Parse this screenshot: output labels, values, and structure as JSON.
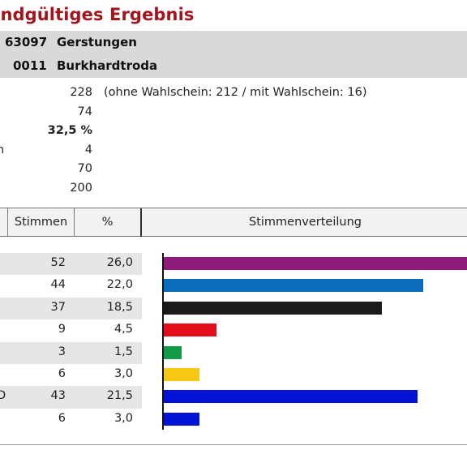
{
  "header": {
    "title": "Endgültiges Ergebnis",
    "municipality_code": "63097",
    "municipality_name": "Gerstungen",
    "district_code": "0011",
    "district_name": "Burkhardtroda"
  },
  "stats": [
    {
      "label_fragment": "",
      "value": "228",
      "note": "(ohne Wahlschein: 212 / mit Wahlschein: 16)",
      "bold": false
    },
    {
      "label_fragment": "",
      "value": "74",
      "note": "",
      "bold": false
    },
    {
      "label_fragment": "",
      "value": "32,5 %",
      "note": "",
      "bold": true
    },
    {
      "label_fragment": "n",
      "value": "4",
      "note": "",
      "bold": false
    },
    {
      "label_fragment": "",
      "value": "70",
      "note": "",
      "bold": false
    },
    {
      "label_fragment": "",
      "value": "200",
      "note": "",
      "bold": false
    }
  ],
  "table": {
    "headers": {
      "votes": "Stimmen",
      "percent": "%",
      "distribution": "Stimmenverteilung"
    }
  },
  "chart_data": {
    "type": "bar",
    "orientation": "horizontal",
    "title": "Stimmenverteilung",
    "rows": [
      {
        "party_fragment": "",
        "votes": "52",
        "percent": "26,0",
        "value": 26.0,
        "color": "#8e1b7a"
      },
      {
        "party_fragment": "",
        "votes": "44",
        "percent": "22,0",
        "value": 22.0,
        "color": "#0a6cba"
      },
      {
        "party_fragment": "",
        "votes": "37",
        "percent": "18,5",
        "value": 18.5,
        "color": "#1a1a1a"
      },
      {
        "party_fragment": "",
        "votes": "9",
        "percent": "4,5",
        "value": 4.5,
        "color": "#e30d1b"
      },
      {
        "party_fragment": "",
        "votes": "3",
        "percent": "1,5",
        "value": 1.5,
        "color": "#139a49"
      },
      {
        "party_fragment": "",
        "votes": "6",
        "percent": "3,0",
        "value": 3.0,
        "color": "#f7c815"
      },
      {
        "party_fragment": "D",
        "votes": "43",
        "percent": "21,5",
        "value": 21.5,
        "color": "#0412d6"
      },
      {
        "party_fragment": "",
        "votes": "6",
        "percent": "3,0",
        "value": 3.0,
        "color": "#0412d6"
      }
    ]
  }
}
